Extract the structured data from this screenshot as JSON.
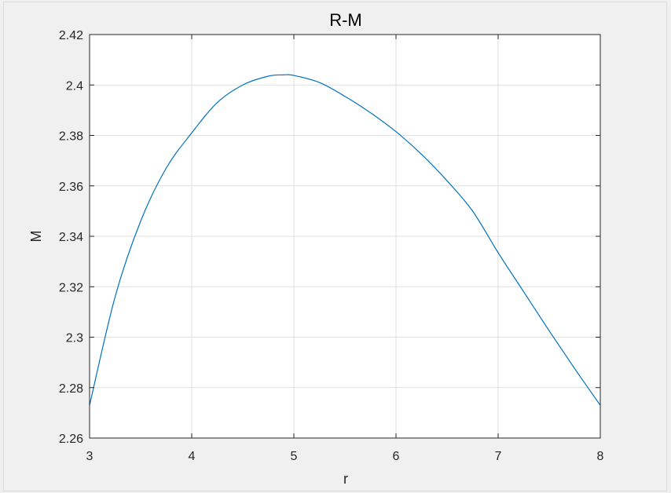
{
  "chart_data": {
    "type": "line",
    "title": "R-M",
    "xlabel": "r",
    "ylabel": "M",
    "xlim": [
      3,
      8
    ],
    "ylim": [
      2.26,
      2.42
    ],
    "xticks": [
      3,
      4,
      5,
      6,
      7,
      8
    ],
    "xtick_labels": [
      "3",
      "4",
      "5",
      "6",
      "7",
      "8"
    ],
    "yticks": [
      2.26,
      2.28,
      2.3,
      2.32,
      2.34,
      2.36,
      2.38,
      2.4,
      2.42
    ],
    "ytick_labels": [
      "2.26",
      "2.28",
      "2.3",
      "2.32",
      "2.34",
      "2.36",
      "2.38",
      "2.4",
      "2.42"
    ],
    "grid": true,
    "series": [
      {
        "color": "#0072bd",
        "x": [
          3.0,
          3.25,
          3.5,
          3.75,
          4.0,
          4.25,
          4.5,
          4.75,
          4.9,
          5.0,
          5.25,
          5.5,
          5.75,
          6.0,
          6.25,
          6.5,
          6.75,
          7.0,
          7.25,
          7.5,
          7.75,
          8.0
        ],
        "y": [
          2.273,
          2.316,
          2.346,
          2.367,
          2.381,
          2.393,
          2.4,
          2.4035,
          2.404,
          2.4038,
          2.401,
          2.3955,
          2.389,
          2.3815,
          2.3725,
          2.362,
          2.35,
          2.3335,
          2.318,
          2.3025,
          2.2875,
          2.273
        ]
      }
    ]
  }
}
